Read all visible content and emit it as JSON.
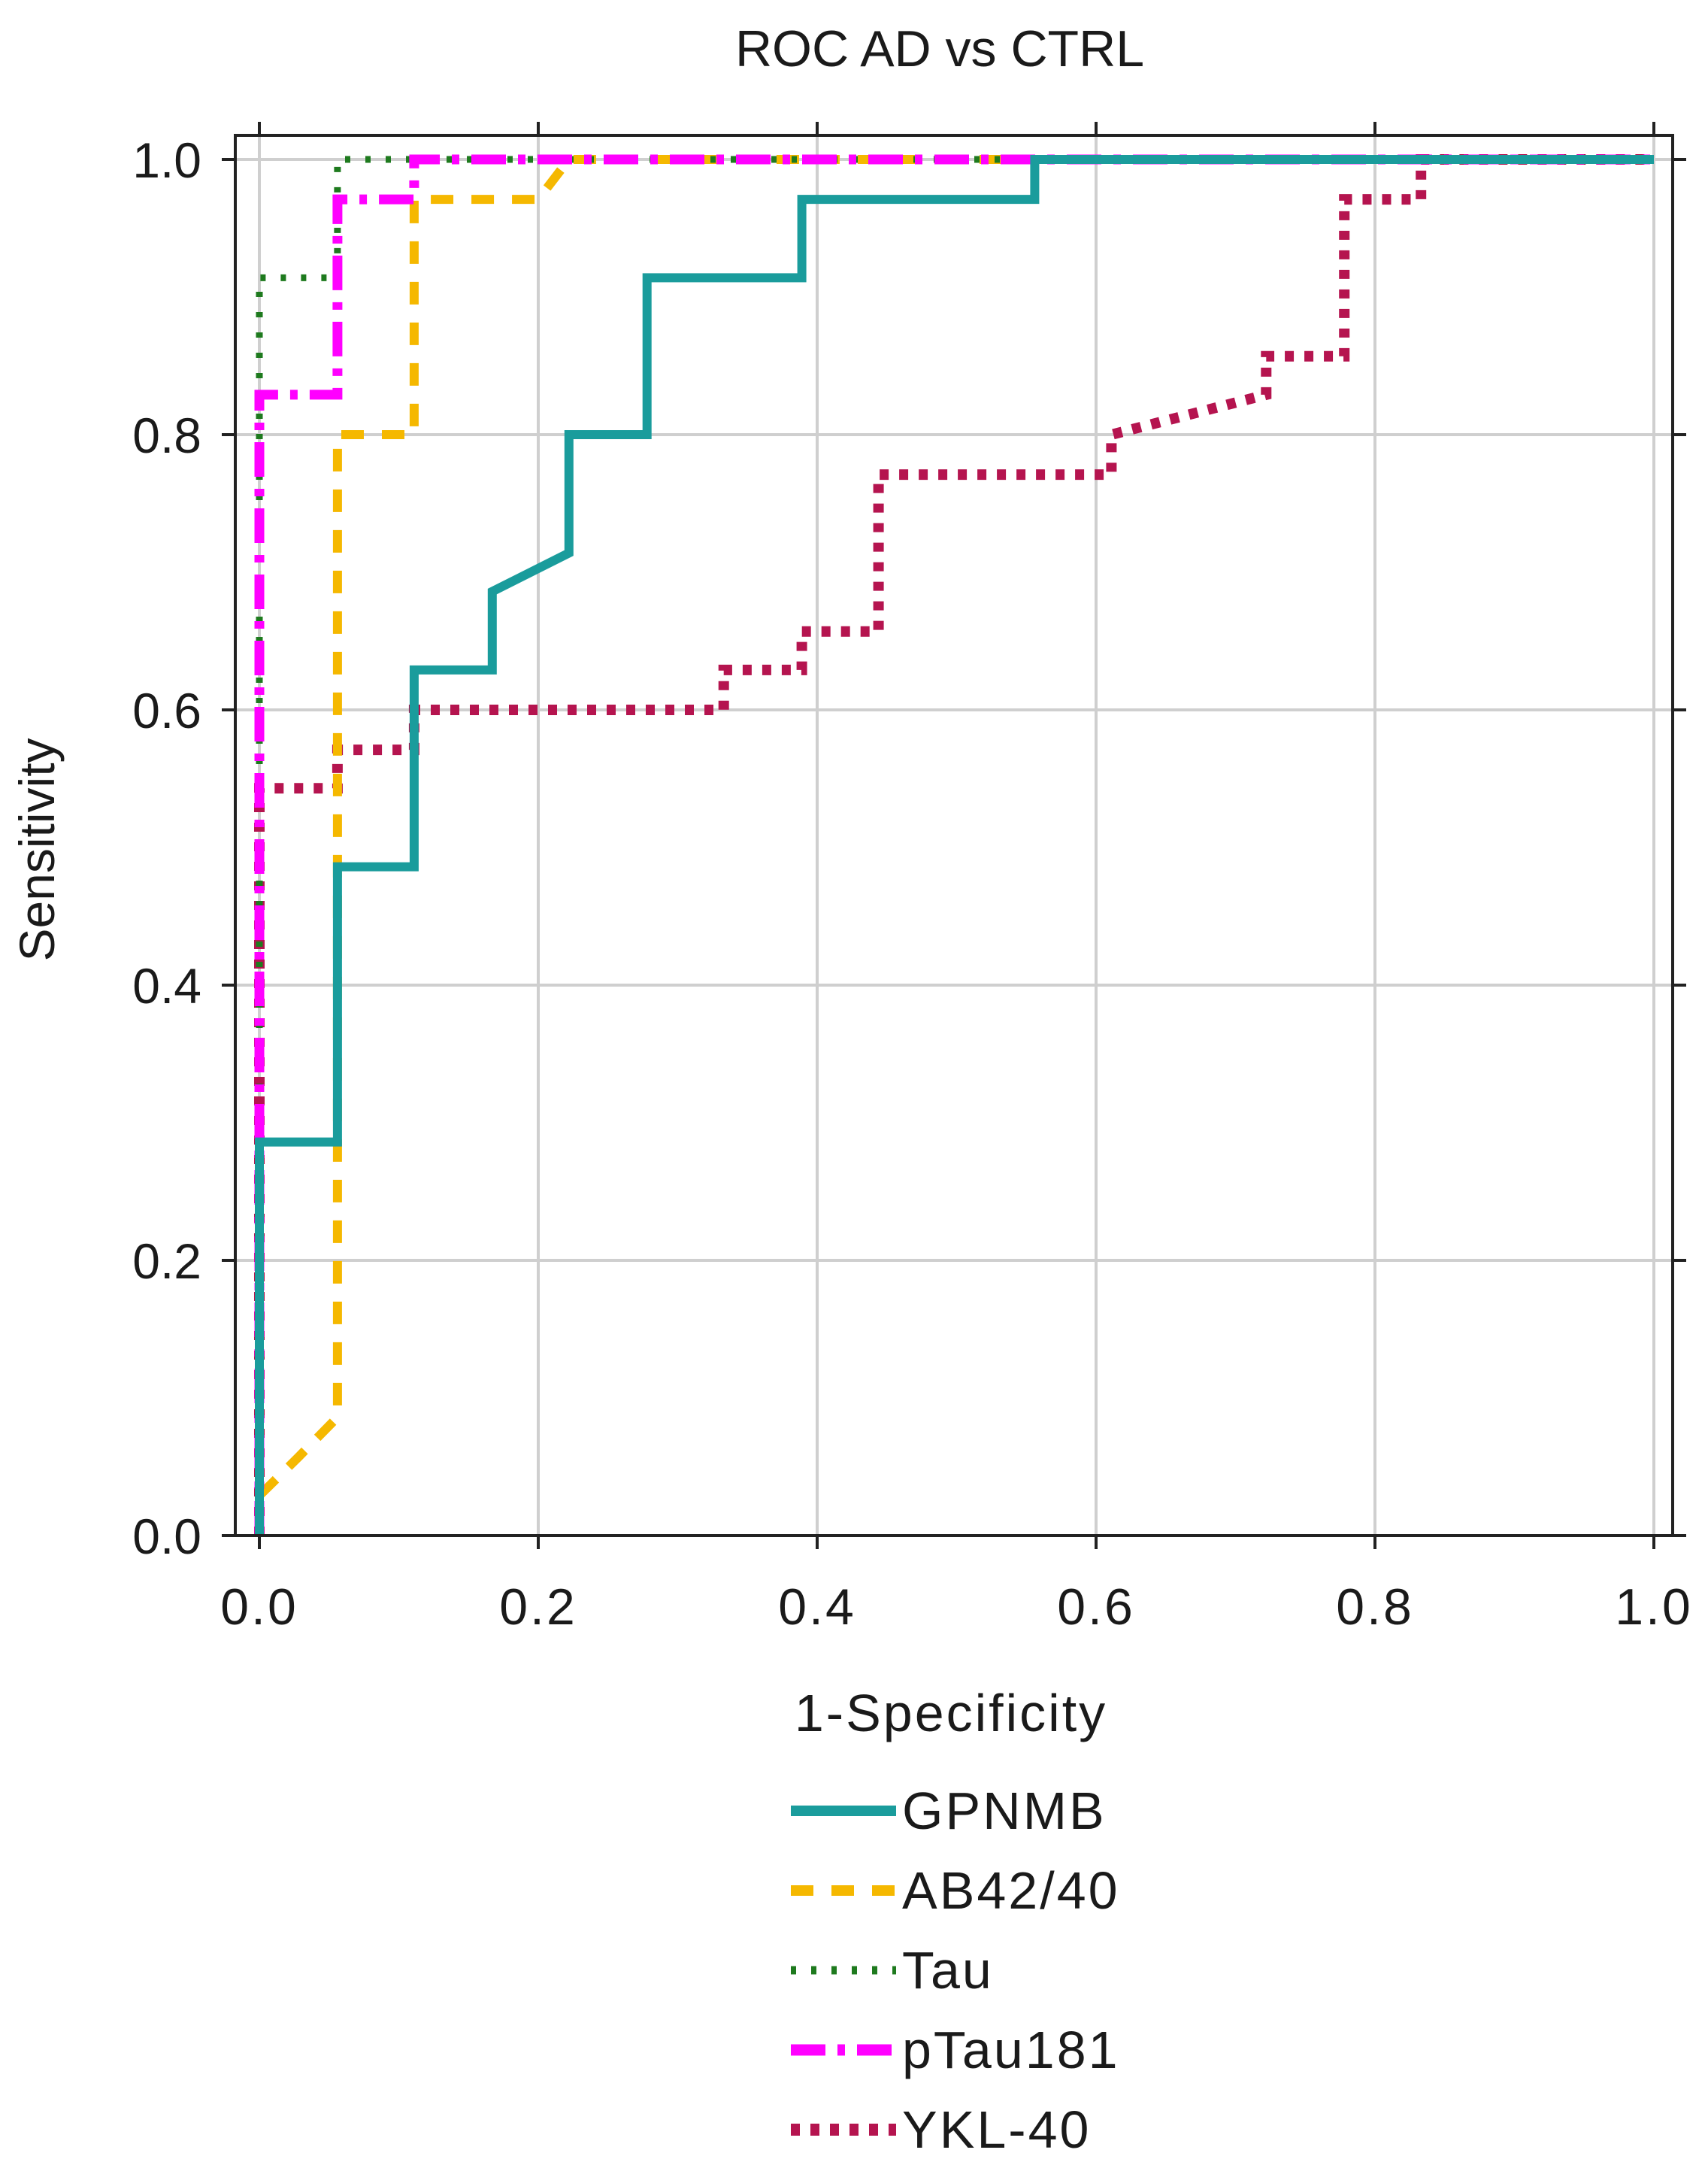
{
  "chart_data": {
    "type": "line",
    "title": "ROC AD vs CTRL",
    "xlabel": "1-Specificity",
    "ylabel": "Sensitivity",
    "xlim": [
      0,
      1
    ],
    "ylim": [
      0,
      1
    ],
    "xticks": [
      "0.0",
      "0.2",
      "0.4",
      "0.6",
      "0.8",
      "1.0"
    ],
    "yticks": [
      "0.0",
      "0.2",
      "0.4",
      "0.6",
      "0.8",
      "1.0"
    ],
    "grid": true,
    "legend_position": "bottom",
    "series": [
      {
        "name": "GPNMB",
        "style": "solid",
        "color": "#1a9c9c",
        "x": [
          0.0,
          0.0,
          0.056,
          0.056,
          0.111,
          0.111,
          0.167,
          0.167,
          0.222,
          0.222,
          0.278,
          0.278,
          0.389,
          0.389,
          0.556,
          0.556,
          1.0
        ],
        "y": [
          0.0,
          0.286,
          0.286,
          0.486,
          0.486,
          0.629,
          0.629,
          0.686,
          0.714,
          0.8,
          0.8,
          0.914,
          0.914,
          0.971,
          0.971,
          1.0,
          1.0
        ]
      },
      {
        "name": "AB42/40",
        "style": "dashed",
        "color": "#f5b800",
        "x": [
          0.0,
          0.0,
          0.028,
          0.056,
          0.056,
          0.056,
          0.111,
          0.111,
          0.2,
          0.222,
          1.0
        ],
        "y": [
          0.0,
          0.029,
          0.057,
          0.086,
          0.8,
          0.8,
          0.8,
          0.971,
          0.971,
          1.0,
          1.0
        ]
      },
      {
        "name": "Tau",
        "style": "dotted",
        "color": "#1e7a1e",
        "x": [
          0.0,
          0.0,
          0.0,
          0.028,
          0.056,
          0.056,
          0.056,
          1.0
        ],
        "y": [
          0.0,
          0.914,
          0.914,
          0.914,
          0.914,
          1.0,
          1.0,
          1.0
        ]
      },
      {
        "name": "pTau181",
        "style": "dashdot",
        "color": "#ff00ff",
        "x": [
          0.0,
          0.0,
          0.0,
          0.056,
          0.056,
          0.111,
          0.111,
          1.0
        ],
        "y": [
          0.0,
          0.514,
          0.829,
          0.829,
          0.971,
          0.971,
          1.0,
          1.0
        ]
      },
      {
        "name": "YKL-40",
        "style": "dotted-heavy",
        "color": "#b5144f",
        "x": [
          0.0,
          0.0,
          0.056,
          0.056,
          0.111,
          0.111,
          0.333,
          0.333,
          0.389,
          0.389,
          0.444,
          0.444,
          0.611,
          0.611,
          0.722,
          0.722,
          0.778,
          0.778,
          0.833,
          0.833,
          1.0
        ],
        "y": [
          0.0,
          0.543,
          0.543,
          0.571,
          0.571,
          0.6,
          0.6,
          0.629,
          0.629,
          0.657,
          0.657,
          0.771,
          0.771,
          0.8,
          0.829,
          0.857,
          0.857,
          0.971,
          0.971,
          1.0,
          1.0
        ]
      }
    ]
  }
}
